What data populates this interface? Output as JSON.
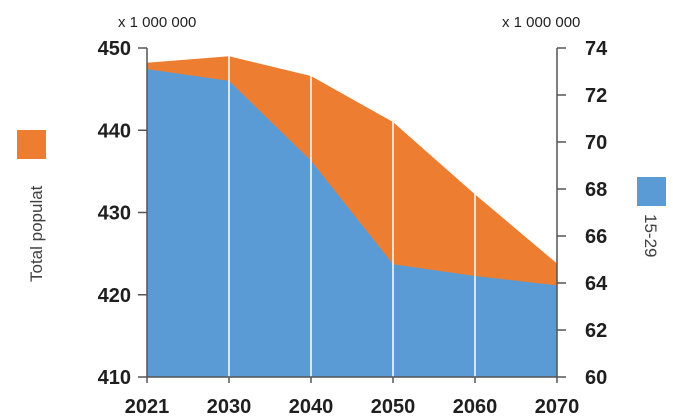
{
  "colors": {
    "total_population": "#ed7d31",
    "age_15_29": "#5b9bd5",
    "axis": "#555555"
  },
  "chart_data": {
    "type": "area",
    "categories": [
      "2021",
      "2030",
      "2040",
      "2050",
      "2060",
      "2070"
    ],
    "series": [
      {
        "name": "Total populat",
        "axis": "left",
        "color": "#ed7d31",
        "values": [
          448.2,
          449.0,
          446.6,
          441.0,
          432.2,
          423.8
        ]
      },
      {
        "name": "15-29",
        "axis": "right",
        "color": "#5b9bd5",
        "values": [
          73.1,
          72.6,
          69.2,
          64.8,
          64.3,
          63.9
        ]
      }
    ],
    "y_left": {
      "multiplier": "x 1 000 000",
      "min": 410,
      "max": 450,
      "ticks": [
        "410",
        "420",
        "430",
        "440",
        "450"
      ]
    },
    "y_right": {
      "multiplier": "x 1 000 000",
      "min": 60,
      "max": 74,
      "ticks": [
        "60",
        "62",
        "64",
        "66",
        "68",
        "70",
        "72",
        "74"
      ]
    },
    "grid": "vertical lines at each category"
  }
}
